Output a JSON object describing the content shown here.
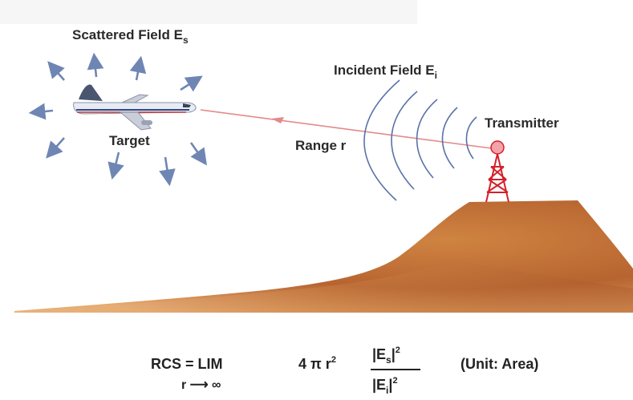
{
  "labels": {
    "scattered_field": "Scattered Field E",
    "scattered_sub": "s",
    "incident_field": "Incident Field E",
    "incident_sub": "i",
    "transmitter": "Transmitter",
    "target": "Target",
    "range": "Range r"
  },
  "formula": {
    "lhs": "RCS = LIM",
    "limit": "r ⟶ ∞",
    "coef": "4 π r",
    "coef_exp": "2",
    "num_left": "|E",
    "num_sub": "s",
    "num_right": "|",
    "num_exp": "2",
    "den_left": "|E",
    "den_sub": "i",
    "den_right": "|",
    "den_exp": "2",
    "unit": "(Unit: Area)"
  },
  "icons": [
    "airplane-icon",
    "transmitter-tower-icon"
  ],
  "colors": {
    "arrow_blue": "#6f86b4",
    "wave_blue": "#5a72a8",
    "range_line": "#e38a8a",
    "hill_dark": "#9c4f22",
    "hill_light": "#d9904a",
    "tower_red": "#d5202a"
  }
}
